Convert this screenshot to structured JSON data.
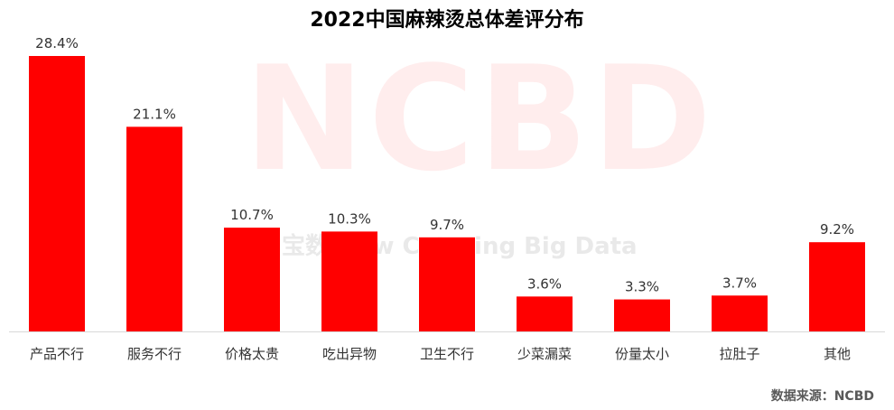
{
  "chart_data": {
    "type": "bar",
    "title": "2022中国麻辣烫总体差评分布",
    "xlabel": "",
    "ylabel": "",
    "categories": [
      "产品不行",
      "服务不行",
      "价格太贵",
      "吃出异物",
      "卫生不行",
      "少菜漏菜",
      "份量太小",
      "拉肚子",
      "其他"
    ],
    "values": [
      28.4,
      21.1,
      10.7,
      10.3,
      9.7,
      3.6,
      3.3,
      3.7,
      9.2
    ],
    "value_labels": [
      "28.4%",
      "21.1%",
      "10.7%",
      "10.3%",
      "9.7%",
      "3.6%",
      "3.3%",
      "3.7%",
      "9.2%"
    ],
    "ylim": [
      0,
      30
    ],
    "bar_color": "#ff0000",
    "grid": false,
    "legend": "none"
  },
  "source": "数据来源：NCBD",
  "watermark": {
    "big": "NCBD",
    "small": "宝数 New Catering Big Data"
  }
}
